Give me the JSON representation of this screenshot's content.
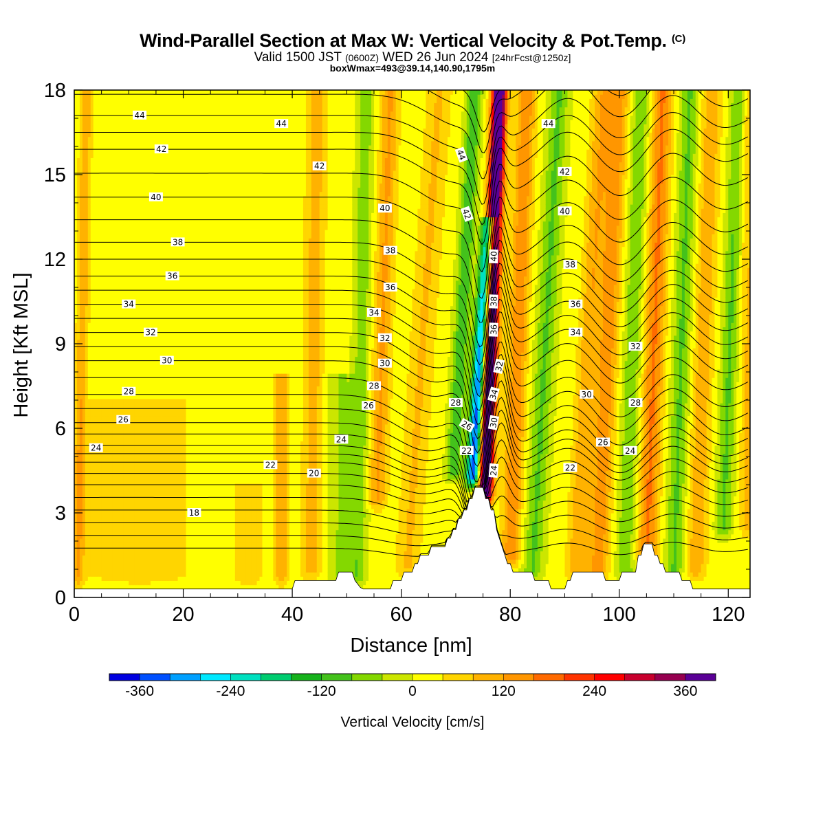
{
  "title": {
    "main": "Wind-Parallel Section at Max W: Vertical Velocity & Pot.Temp.",
    "copyright": "(C)",
    "valid_prefix": "Valid 1500 JST",
    "valid_utc": "(0600Z)",
    "valid_date": "WED 26 Jun 2024",
    "forecast": "[24hrFcst@1250z]",
    "boxwmax": "boxWmax=493@39.14,140.90,1795m"
  },
  "chart_data": {
    "type": "heatmap",
    "xlabel": "Distance [nm]",
    "ylabel": "Height [Kft MSL]",
    "xlim": [
      0,
      124
    ],
    "ylim": [
      0,
      18
    ],
    "xticks": [
      0,
      20,
      40,
      60,
      80,
      100,
      120
    ],
    "yticks": [
      0,
      3,
      6,
      9,
      12,
      15,
      18
    ],
    "grid": false,
    "colorbar": {
      "label": "Vertical Velocity [cm/s]",
      "placement": "bottom",
      "min": -400,
      "max": 400,
      "step": 40,
      "tick_values": [
        -360,
        -240,
        -120,
        0,
        120,
        240,
        360
      ],
      "tick_labels": [
        "-360",
        "-240",
        "-120",
        "0",
        "120",
        "240",
        "360"
      ],
      "colors": [
        "#0000e0",
        "#0050ff",
        "#00a0ff",
        "#00e8ff",
        "#00e0c0",
        "#00cc70",
        "#16b21c",
        "#44c21c",
        "#84d800",
        "#cce600",
        "#ffff00",
        "#ffd500",
        "#ffb200",
        "#ff9600",
        "#ff6a00",
        "#ff3400",
        "#ff0000",
        "#c8002e",
        "#960050",
        "#5a0096"
      ]
    },
    "terrain_kft": [
      [
        0,
        0.3
      ],
      [
        40,
        0.3
      ],
      [
        40.5,
        0.6
      ],
      [
        48,
        0.6
      ],
      [
        48.5,
        0.9
      ],
      [
        51,
        0.9
      ],
      [
        51.5,
        0.6
      ],
      [
        52.5,
        0.35
      ],
      [
        53,
        0.3
      ],
      [
        58,
        0.3
      ],
      [
        58.5,
        0.6
      ],
      [
        60,
        0.6
      ],
      [
        60.5,
        0.9
      ],
      [
        62,
        0.9
      ],
      [
        62.5,
        1.2
      ],
      [
        63,
        1.2
      ],
      [
        63.5,
        1.5
      ],
      [
        65,
        1.5
      ],
      [
        65.5,
        1.8
      ],
      [
        68,
        1.8
      ],
      [
        68.5,
        2.1
      ],
      [
        69,
        2.1
      ],
      [
        69.5,
        2.4
      ],
      [
        70,
        2.4
      ],
      [
        70.5,
        2.8
      ],
      [
        71,
        2.8
      ],
      [
        71.5,
        3.1
      ],
      [
        72,
        3.1
      ],
      [
        72.5,
        3.5
      ],
      [
        73,
        3.5
      ],
      [
        73.5,
        3.9
      ],
      [
        75,
        3.9
      ],
      [
        75.5,
        3.5
      ],
      [
        76,
        3.5
      ],
      [
        76.5,
        3.1
      ],
      [
        77,
        3.1
      ],
      [
        77.5,
        2.4
      ],
      [
        78,
        2.1
      ],
      [
        78.5,
        1.8
      ],
      [
        79,
        1.5
      ],
      [
        79.5,
        1.2
      ],
      [
        80,
        1.2
      ],
      [
        80.5,
        0.9
      ],
      [
        84,
        0.9
      ],
      [
        84.5,
        0.6
      ],
      [
        87,
        0.6
      ],
      [
        87.5,
        0.3
      ],
      [
        90,
        0.3
      ],
      [
        90.5,
        0.6
      ],
      [
        91,
        0.6
      ],
      [
        91.5,
        0.9
      ],
      [
        97,
        0.9
      ],
      [
        97.5,
        0.6
      ],
      [
        100,
        0.6
      ],
      [
        100.5,
        0.9
      ],
      [
        103,
        0.9
      ],
      [
        103.5,
        1.5
      ],
      [
        104,
        1.5
      ],
      [
        104.5,
        1.9
      ],
      [
        106,
        1.9
      ],
      [
        106.5,
        1.5
      ],
      [
        107,
        1.5
      ],
      [
        107.5,
        1.2
      ],
      [
        108,
        1.2
      ],
      [
        108.5,
        0.9
      ],
      [
        111,
        0.9
      ],
      [
        111.5,
        0.6
      ],
      [
        113,
        0.6
      ],
      [
        113.5,
        0.3
      ],
      [
        124,
        0.3
      ]
    ],
    "w_features": [
      {
        "x0": 0.7,
        "x1": 2.2,
        "w": 100,
        "sigma": 0.75,
        "zmin": 0.3,
        "zmax": 18
      },
      {
        "x0": 75.3,
        "x1": 78.0,
        "w": 480,
        "sigma": 0.95,
        "zmin": 3.2,
        "zmax": 18
      },
      {
        "x0": 73.0,
        "x1": 76.2,
        "w": -380,
        "sigma": 0.9,
        "zmin": 3.8,
        "zmax": 13.5
      },
      {
        "x0": 69.5,
        "x1": 73.5,
        "w": -130,
        "sigma": 1.0,
        "zmin": 4,
        "zmax": 18
      },
      {
        "x0": 80.0,
        "x1": 83.0,
        "w": 140,
        "sigma": 1.2,
        "zmin": 1,
        "zmax": 18
      },
      {
        "x0": 84.0,
        "x1": 89.0,
        "w": -100,
        "sigma": 1.3,
        "zmin": 0.5,
        "zmax": 18
      },
      {
        "x0": 61.0,
        "x1": 67.0,
        "w": 70,
        "sigma": 1.6,
        "zmin": 0.6,
        "zmax": 18
      },
      {
        "x0": 55.5,
        "x1": 58.0,
        "w": 110,
        "sigma": 1.2,
        "zmin": 3,
        "zmax": 18
      },
      {
        "x0": 52.0,
        "x1": 53.5,
        "w": -80,
        "sigma": 1.1,
        "zmin": 0.3,
        "zmax": 18
      },
      {
        "x0": 49.0,
        "x1": 49.0,
        "w": -60,
        "sigma": 1.8,
        "zmin": 0.3,
        "zmax": 8
      },
      {
        "x0": 43.5,
        "x1": 44.5,
        "w": 85,
        "sigma": 1.3,
        "zmin": 0.5,
        "zmax": 18
      },
      {
        "x0": 38.0,
        "x1": 38.0,
        "w": 90,
        "sigma": 1.0,
        "zmin": 0.3,
        "zmax": 8
      },
      {
        "x0": 32.0,
        "x1": 32.0,
        "w": 60,
        "sigma": 1.8,
        "zmin": 0.3,
        "zmax": 4
      },
      {
        "x0": 12.0,
        "x1": 12.0,
        "w": 45,
        "sigma": 8.0,
        "zmin": 0.3,
        "zmax": 7
      },
      {
        "x0": 92.0,
        "x1": 97.0,
        "w": 100,
        "sigma": 1.3,
        "zmin": 0.5,
        "zmax": 18
      },
      {
        "x0": 96.0,
        "x1": 100.0,
        "w": 130,
        "sigma": 1.3,
        "zmin": 0.5,
        "zmax": 18
      },
      {
        "x0": 101.0,
        "x1": 104.0,
        "w": -90,
        "sigma": 1.2,
        "zmin": 0.5,
        "zmax": 18
      },
      {
        "x0": 105.0,
        "x1": 108.0,
        "w": 150,
        "sigma": 1.3,
        "zmin": 1,
        "zmax": 18
      },
      {
        "x0": 110.0,
        "x1": 113.0,
        "w": -100,
        "sigma": 1.2,
        "zmin": 0.5,
        "zmax": 18
      },
      {
        "x0": 114.0,
        "x1": 117.0,
        "w": 95,
        "sigma": 1.3,
        "zmin": 0.5,
        "zmax": 18
      },
      {
        "x0": 119.0,
        "x1": 122.0,
        "w": -100,
        "sigma": 1.1,
        "zmin": 2,
        "zmax": 18
      },
      {
        "x0": 123.5,
        "x1": 123.5,
        "w": 70,
        "sigma": 1.0,
        "zmin": 2,
        "zmax": 18
      }
    ],
    "theta_contour_interval": 1,
    "theta_contour_labels": [
      {
        "text": "44",
        "x": 12,
        "z": 17.1
      },
      {
        "text": "44",
        "x": 38,
        "z": 16.8
      },
      {
        "text": "44",
        "x": 71,
        "z": 15.7,
        "rot": 70
      },
      {
        "text": "44",
        "x": 87,
        "z": 16.8
      },
      {
        "text": "42",
        "x": 16,
        "z": 15.9
      },
      {
        "text": "42",
        "x": 45,
        "z": 15.3
      },
      {
        "text": "42",
        "x": 72,
        "z": 13.6,
        "rot": 70
      },
      {
        "text": "42",
        "x": 90,
        "z": 15.1
      },
      {
        "text": "40",
        "x": 15,
        "z": 14.2
      },
      {
        "text": "40",
        "x": 57,
        "z": 13.8
      },
      {
        "text": "40",
        "x": 77,
        "z": 12.1,
        "rot": -88
      },
      {
        "text": "40",
        "x": 90,
        "z": 13.7
      },
      {
        "text": "38",
        "x": 19,
        "z": 12.6
      },
      {
        "text": "38",
        "x": 58,
        "z": 12.3
      },
      {
        "text": "38",
        "x": 77,
        "z": 10.5,
        "rot": -88
      },
      {
        "text": "38",
        "x": 91,
        "z": 11.8
      },
      {
        "text": "36",
        "x": 18,
        "z": 11.4
      },
      {
        "text": "36",
        "x": 58,
        "z": 11.0
      },
      {
        "text": "36",
        "x": 77,
        "z": 9.5,
        "rot": -88
      },
      {
        "text": "36",
        "x": 92,
        "z": 10.4
      },
      {
        "text": "34",
        "x": 10,
        "z": 10.4
      },
      {
        "text": "34",
        "x": 55,
        "z": 10.1
      },
      {
        "text": "34",
        "x": 77,
        "z": 7.2,
        "rot": -75
      },
      {
        "text": "34",
        "x": 92,
        "z": 9.4
      },
      {
        "text": "32",
        "x": 14,
        "z": 9.4
      },
      {
        "text": "32",
        "x": 57,
        "z": 9.2
      },
      {
        "text": "32",
        "x": 78,
        "z": 8.2,
        "rot": -78
      },
      {
        "text": "32",
        "x": 103,
        "z": 8.9
      },
      {
        "text": "30",
        "x": 17,
        "z": 8.4
      },
      {
        "text": "30",
        "x": 57,
        "z": 8.3
      },
      {
        "text": "30",
        "x": 77,
        "z": 6.2,
        "rot": -80
      },
      {
        "text": "30",
        "x": 94,
        "z": 7.2
      },
      {
        "text": "28",
        "x": 10,
        "z": 7.3
      },
      {
        "text": "28",
        "x": 55,
        "z": 7.5
      },
      {
        "text": "28",
        "x": 70,
        "z": 6.9
      },
      {
        "text": "28",
        "x": 103,
        "z": 6.9
      },
      {
        "text": "26",
        "x": 9,
        "z": 6.3
      },
      {
        "text": "26",
        "x": 54,
        "z": 6.8
      },
      {
        "text": "26",
        "x": 72,
        "z": 6.1,
        "rot": 30
      },
      {
        "text": "26",
        "x": 97,
        "z": 5.5
      },
      {
        "text": "24",
        "x": 4,
        "z": 5.3
      },
      {
        "text": "24",
        "x": 49,
        "z": 5.6
      },
      {
        "text": "24",
        "x": 77,
        "z": 4.5,
        "rot": -85
      },
      {
        "text": "24",
        "x": 102,
        "z": 5.2
      },
      {
        "text": "22",
        "x": 36,
        "z": 4.7
      },
      {
        "text": "22",
        "x": 72,
        "z": 5.2
      },
      {
        "text": "22",
        "x": 91,
        "z": 4.6
      },
      {
        "text": "20",
        "x": 44,
        "z": 4.4
      },
      {
        "text": "18",
        "x": 22,
        "z": 3.0
      }
    ]
  }
}
